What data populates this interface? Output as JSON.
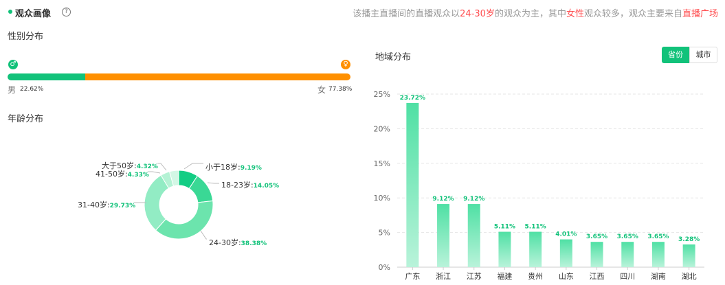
{
  "header": {
    "title": "观众画像",
    "help_symbol": "?",
    "summary": {
      "prefix": "该播主直播间的直播观众以",
      "age": "24-30岁",
      "middle1": "的观众为主，其中",
      "gender": "女性",
      "middle2": "观众较多，观众主要来自",
      "source": "直播广场"
    }
  },
  "gender": {
    "title": "性别分布",
    "male_label": "男",
    "male_value": "22.62%",
    "female_label": "女",
    "female_value": "77.38%",
    "male_icon": "male-icon",
    "female_icon": "female-icon",
    "male_fraction": 0.2262,
    "colors": {
      "male": "#12c27a",
      "female": "#ff9000"
    }
  },
  "age": {
    "title": "年龄分布",
    "segments": [
      {
        "label": "小于18岁:",
        "value": "9.19%",
        "pct": 9.19,
        "color": "#13cd84"
      },
      {
        "label": "18-23岁:",
        "value": "14.05%",
        "pct": 14.05,
        "color": "#3ad895"
      },
      {
        "label": "24-30岁:",
        "value": "38.38%",
        "pct": 38.38,
        "color": "#6ce4ad"
      },
      {
        "label": "31-40岁:",
        "value": "29.73%",
        "pct": 29.73,
        "color": "#92ecc4"
      },
      {
        "label": "41-50岁:",
        "value": "4.33%",
        "pct": 4.33,
        "color": "#b4f2d4"
      },
      {
        "label": "大于50岁:",
        "value": "4.32%",
        "pct": 4.32,
        "color": "#d2f7e5"
      }
    ]
  },
  "region": {
    "title": "地域分布",
    "toggle": {
      "province": "省份",
      "city": "城市"
    }
  },
  "chart_data": {
    "type": "bar",
    "title": "地域分布",
    "categories": [
      "广东",
      "浙江",
      "江苏",
      "福建",
      "贵州",
      "山东",
      "江西",
      "四川",
      "湖南",
      "湖北"
    ],
    "values": [
      23.72,
      9.12,
      9.12,
      5.11,
      5.11,
      4.01,
      3.65,
      3.65,
      3.65,
      3.28
    ],
    "value_labels": [
      "23.72%",
      "9.12%",
      "9.12%",
      "5.11%",
      "5.11%",
      "4.01%",
      "3.65%",
      "3.65%",
      "3.65%",
      "3.28%"
    ],
    "ylim": [
      0,
      25
    ],
    "yticks": [
      "0%",
      "5%",
      "10%",
      "15%",
      "20%",
      "25%"
    ],
    "grid": true,
    "colors": {
      "bar_top": "#4fe0a4",
      "bar_bottom": "#b9f3da",
      "label": "#12c27a"
    }
  }
}
